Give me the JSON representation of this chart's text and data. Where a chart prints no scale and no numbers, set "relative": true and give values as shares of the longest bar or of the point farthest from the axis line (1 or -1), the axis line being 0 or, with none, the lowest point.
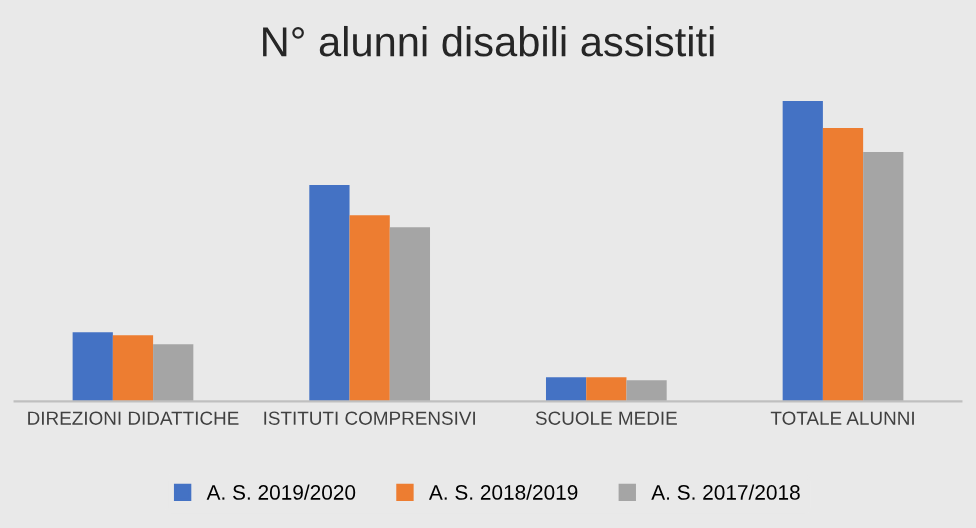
{
  "chart_data": {
    "type": "bar",
    "title": "N° alunni disabili assistiti",
    "relative": true,
    "legend": "bottom",
    "grid": false,
    "categories": [
      "DIREZIONI DIDATTICHE",
      "ISTITUTI COMPRENSIVI",
      "SCUOLE MEDIE",
      "TOTALE ALUNNI"
    ],
    "series": [
      {
        "name": "A. S. 2019/2020",
        "color": "#4472c4",
        "values": [
          0.23,
          0.72,
          0.08,
          1
        ]
      },
      {
        "name": "A. S. 2018/2019",
        "color": "#ed7d31",
        "values": [
          0.22,
          0.62,
          0.08,
          0.91
        ]
      },
      {
        "name": "A. S. 2017/2018",
        "color": "#a5a5a5",
        "values": [
          0.19,
          0.58,
          0.07,
          0.83
        ]
      }
    ]
  }
}
